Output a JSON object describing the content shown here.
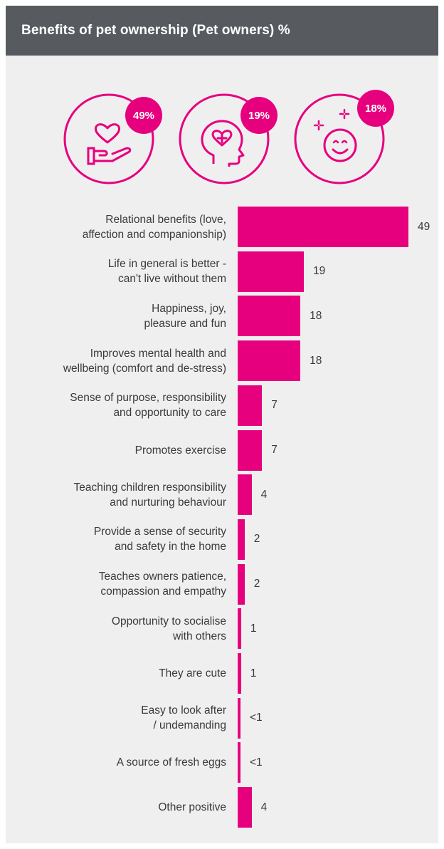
{
  "header": {
    "title": "Benefits of pet ownership (Pet owners) %"
  },
  "highlights": [
    {
      "value": "49%",
      "icon": "heart-in-hand-icon"
    },
    {
      "value": "19%",
      "icon": "head-with-heart-icon"
    },
    {
      "value": "18%",
      "icon": "smiling-face-icon"
    }
  ],
  "colors": {
    "accent": "#e6007e",
    "header_bg": "#575b60",
    "panel_bg": "#efeff0"
  },
  "chart_data": {
    "type": "bar",
    "orientation": "horizontal",
    "title": "Benefits of pet ownership (Pet owners) %",
    "categories": [
      "Relational benefits (love,\naffection and companionship)",
      "Life in general is better -\ncan't live without them",
      "Happiness, joy,\npleasure and fun",
      "Improves mental health and\nwellbeing (comfort and de-stress)",
      "Sense of purpose, responsibility\nand opportunity to care",
      "Promotes exercise",
      "Teaching children responsibility\nand nurturing behaviour",
      "Provide a sense of security\nand safety in the home",
      "Teaches owners patience,\ncompassion and empathy",
      "Opportunity to socialise\nwith others",
      "They are cute",
      "Easy to look after\n/ undemanding",
      "A source of fresh eggs",
      "Other positive"
    ],
    "values": [
      49,
      19,
      18,
      18,
      7,
      7,
      4,
      2,
      2,
      1,
      1,
      0.4,
      0.4,
      4
    ],
    "value_labels": [
      "49",
      "19",
      "18",
      "18",
      "7",
      "7",
      "4",
      "2",
      "2",
      "1",
      "1",
      "<1",
      "<1",
      "4"
    ],
    "xlim": [
      0,
      49
    ],
    "grid": false,
    "legend": "none"
  }
}
